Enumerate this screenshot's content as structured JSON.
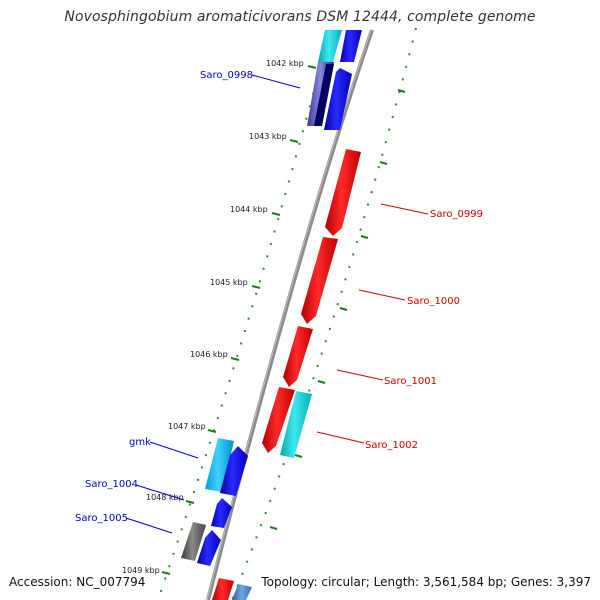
{
  "title": "Novosphingobium aromaticivorans DSM 12444, complete genome",
  "footer": {
    "accession": "Accession: NC_007794",
    "summary": "Topology: circular; Length: 3,561,584 bp; Genes: 3,397"
  },
  "scale": {
    "ticks": [
      "1042 kbp",
      "1043 kbp",
      "1044 kbp",
      "1045 kbp",
      "1046 kbp",
      "1047 kbp",
      "1048 kbp",
      "1049 kbp"
    ]
  },
  "genes": {
    "minus_strand": [
      {
        "label": "Saro_0998",
        "color": "#0000cc"
      },
      {
        "label": "gmk",
        "color": "#0000cc"
      },
      {
        "label": "Saro_1004",
        "color": "#0000cc"
      },
      {
        "label": "Saro_1005",
        "color": "#0000cc"
      }
    ],
    "plus_strand": [
      {
        "label": "Saro_0999",
        "color": "#cc0000"
      },
      {
        "label": "Saro_1000",
        "color": "#cc0000"
      },
      {
        "label": "Saro_1001",
        "color": "#cc0000"
      },
      {
        "label": "Saro_1002",
        "color": "#cc0000"
      }
    ]
  },
  "colors": {
    "backbone": "#8c8c8c",
    "gc_dots": "#2e8b2e",
    "forward_cds": "#ff0000",
    "reverse_cds": "#0000ff",
    "rna": "#00cccc",
    "pseudo": "#666666"
  }
}
